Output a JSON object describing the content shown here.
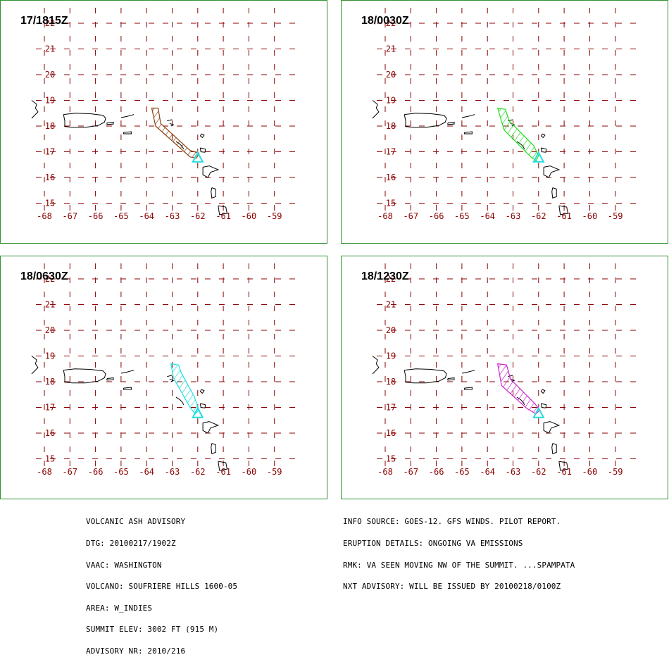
{
  "panels": [
    {
      "time": "17/1815Z",
      "plume_color": "#8b4513"
    },
    {
      "time": "18/0030Z",
      "plume_color": "#22dd22"
    },
    {
      "time": "18/0630Z",
      "plume_color": "#22dddd"
    },
    {
      "time": "18/1230Z",
      "plume_color": "#cc22cc"
    }
  ],
  "map": {
    "longitude_labels": [
      "-68",
      "-67",
      "-66",
      "-65",
      "-64",
      "-63",
      "-62",
      "-61",
      "-60",
      "-59"
    ],
    "latitude_labels": [
      "22",
      "21",
      "20",
      "19",
      "18",
      "17",
      "16",
      "15"
    ],
    "grid_color": "#8b0000",
    "volcano_marker_color": "#22dddd",
    "volcano_marker": "triangle-icon"
  },
  "advisory_left": [
    "VOLCANIC ASH ADVISORY",
    "DTG: 20100217/1902Z",
    "VAAC: WASHINGTON",
    "VOLCANO: SOUFRIERE HILLS 1600-05",
    "AREA: W_INDIES",
    "SUMMIT ELEV: 3002 FT (915 M)",
    "ADVISORY NR: 2010/216"
  ],
  "advisory_right": [
    "INFO SOURCE: GOES-12. GFS WINDS. PILOT REPORT.",
    "ERUPTION DETAILS: ONGOING VA EMISSIONS",
    "RMK: VA SEEN MOVING NW OF THE SUMMIT. ...SPAMPATA",
    "NXT ADVISORY: WILL BE ISSUED BY 20100218/0100Z"
  ]
}
